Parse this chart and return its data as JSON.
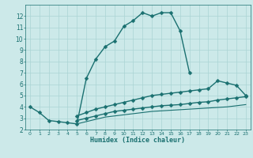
{
  "xlabel": "Humidex (Indice chaleur)",
  "bg_color": "#cce9e9",
  "grid_color": "#aad4d4",
  "line_color": "#1a7070",
  "xlim": [
    -0.5,
    23.5
  ],
  "ylim": [
    2,
    13
  ],
  "xticks": [
    0,
    1,
    2,
    3,
    4,
    5,
    6,
    7,
    8,
    9,
    10,
    11,
    12,
    13,
    14,
    15,
    16,
    17,
    18,
    19,
    20,
    21,
    22,
    23
  ],
  "yticks": [
    2,
    3,
    4,
    5,
    6,
    7,
    8,
    9,
    10,
    11,
    12
  ],
  "line1_x": [
    0,
    1,
    2,
    3,
    4,
    5,
    6,
    7,
    8,
    9,
    10,
    11,
    12,
    13,
    14,
    15,
    16,
    17
  ],
  "line1_y": [
    4.0,
    3.5,
    2.8,
    2.7,
    2.6,
    2.5,
    6.5,
    8.2,
    9.3,
    9.8,
    11.1,
    11.6,
    12.3,
    12.0,
    12.3,
    12.3,
    10.7,
    7.0
  ],
  "line2_x": [
    5,
    6,
    7,
    8,
    9,
    10,
    11,
    12,
    13,
    14,
    15,
    16,
    17,
    18,
    19,
    20,
    21,
    22,
    23
  ],
  "line2_y": [
    3.2,
    3.5,
    3.8,
    4.0,
    4.2,
    4.4,
    4.6,
    4.8,
    5.0,
    5.1,
    5.2,
    5.3,
    5.4,
    5.5,
    5.6,
    6.3,
    6.1,
    5.9,
    5.0
  ],
  "line3_x": [
    5,
    6,
    7,
    8,
    9,
    10,
    11,
    12,
    13,
    14,
    15,
    16,
    17,
    18,
    19,
    20,
    21,
    22,
    23
  ],
  "line3_y": [
    2.8,
    3.0,
    3.2,
    3.4,
    3.6,
    3.7,
    3.8,
    3.9,
    4.0,
    4.1,
    4.15,
    4.2,
    4.3,
    4.4,
    4.45,
    4.6,
    4.7,
    4.8,
    4.9
  ],
  "line4_x": [
    5,
    6,
    7,
    8,
    9,
    10,
    11,
    12,
    13,
    14,
    15,
    16,
    17,
    18,
    19,
    20,
    21,
    22,
    23
  ],
  "line4_y": [
    2.5,
    2.7,
    2.9,
    3.1,
    3.2,
    3.3,
    3.4,
    3.5,
    3.6,
    3.65,
    3.7,
    3.75,
    3.8,
    3.85,
    3.9,
    3.95,
    4.0,
    4.1,
    4.2
  ],
  "markersize": 2.5,
  "linewidth": 1.0
}
